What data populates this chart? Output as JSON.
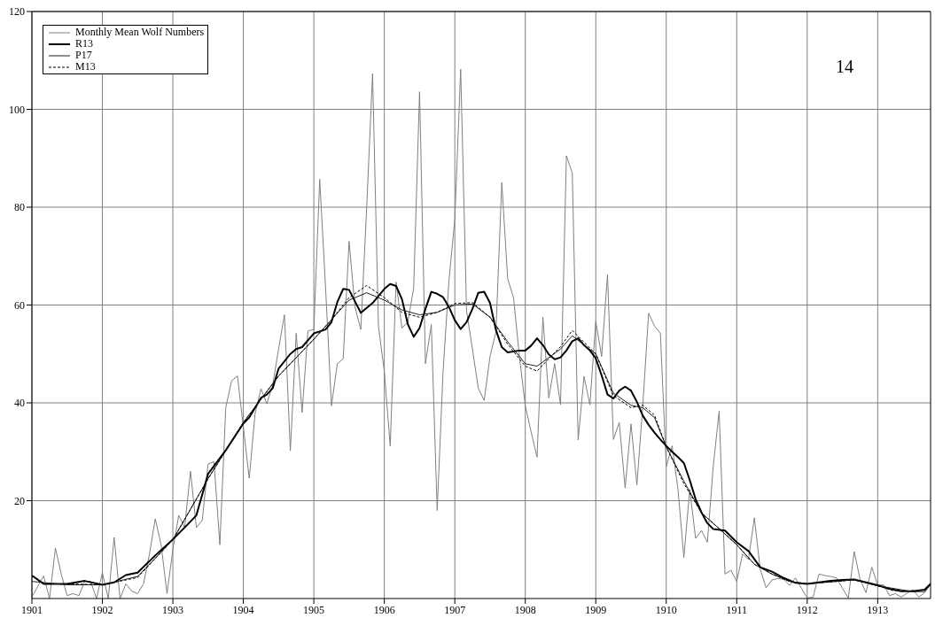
{
  "chart_data": {
    "type": "line",
    "annotations": [
      "14"
    ],
    "xlim": [
      "1901-01",
      "1913-10"
    ],
    "xticks": [
      "1901",
      "1902",
      "1903",
      "1904",
      "1905",
      "1906",
      "1907",
      "1908",
      "1909",
      "1910",
      "1911",
      "1912",
      "1913"
    ],
    "ylim": [
      0,
      120
    ],
    "yticks": [
      20,
      40,
      60,
      80,
      100,
      120
    ],
    "grid": true,
    "legend": "top left",
    "series": [
      {
        "name": "Monthly Mean Wolf Numbers",
        "color": "#808080",
        "x": [
          "1901-01",
          "1901-02",
          "1901-03",
          "1901-04",
          "1901-05",
          "1901-06",
          "1901-07",
          "1901-08",
          "1901-09",
          "1901-10",
          "1901-11",
          "1901-12",
          "1902-01",
          "1902-02",
          "1902-03",
          "1902-04",
          "1902-05",
          "1902-06",
          "1902-07",
          "1902-08",
          "1902-09",
          "1902-10",
          "1902-11",
          "1902-12",
          "1903-01",
          "1903-02",
          "1903-03",
          "1903-04",
          "1903-05",
          "1903-06",
          "1903-07",
          "1903-08",
          "1903-09",
          "1903-10",
          "1903-11",
          "1903-12",
          "1904-01",
          "1904-02",
          "1904-03",
          "1904-04",
          "1904-05",
          "1904-06",
          "1904-07",
          "1904-08",
          "1904-09",
          "1904-10",
          "1904-11",
          "1904-12",
          "1905-01",
          "1905-02",
          "1905-03",
          "1905-04",
          "1905-05",
          "1905-06",
          "1905-07",
          "1905-08",
          "1905-09",
          "1905-10",
          "1905-11",
          "1905-12",
          "1906-01",
          "1906-02",
          "1906-03",
          "1906-04",
          "1906-05",
          "1906-06",
          "1906-07",
          "1906-08",
          "1906-09",
          "1906-10",
          "1906-11",
          "1906-12",
          "1907-01",
          "1907-02",
          "1907-03",
          "1907-04",
          "1907-05",
          "1907-06",
          "1907-07",
          "1907-08",
          "1907-09",
          "1907-10",
          "1907-11",
          "1907-12",
          "1908-01",
          "1908-02",
          "1908-03",
          "1908-04",
          "1908-05",
          "1908-06",
          "1908-07",
          "1908-08",
          "1908-09",
          "1908-10",
          "1908-11",
          "1908-12",
          "1909-01",
          "1909-02",
          "1909-03",
          "1909-04",
          "1909-05",
          "1909-06",
          "1909-07",
          "1909-08",
          "1909-09",
          "1909-10",
          "1909-11",
          "1909-12",
          "1910-01",
          "1910-02",
          "1910-03",
          "1910-04",
          "1910-05",
          "1910-06",
          "1910-07",
          "1910-08",
          "1910-09",
          "1910-10",
          "1910-11",
          "1910-12",
          "1911-01",
          "1911-02",
          "1911-03",
          "1911-04",
          "1911-05",
          "1911-06",
          "1911-07",
          "1911-08",
          "1911-09",
          "1911-10",
          "1911-11",
          "1911-12",
          "1912-01",
          "1912-02",
          "1912-03",
          "1912-04",
          "1912-05",
          "1912-06",
          "1912-07",
          "1912-08",
          "1912-09",
          "1912-10",
          "1912-11",
          "1912-12",
          "1913-01",
          "1913-02",
          "1913-03",
          "1913-04",
          "1913-05",
          "1913-06",
          "1913-07",
          "1913-08",
          "1913-09",
          "1913-10"
        ],
        "values": [
          0.3,
          2.5,
          4.6,
          0,
          10.3,
          5,
          0.6,
          1,
          0.6,
          3.5,
          3.5,
          0,
          5.3,
          0,
          12.5,
          0,
          3,
          1.5,
          1,
          3,
          9,
          16.3,
          11,
          1,
          10,
          17,
          14.5,
          26,
          14.5,
          16,
          27.5,
          28,
          11,
          39,
          44.5,
          45.5,
          35,
          24.6,
          37.8,
          42.9,
          39.8,
          43.7,
          51,
          58,
          30.2,
          54.2,
          38,
          54.7,
          55,
          85.7,
          63.5,
          39.4,
          48,
          49,
          73,
          59.6,
          55,
          80,
          107.3,
          55.7,
          46.4,
          31.2,
          64.7,
          55.3,
          56.5,
          63.5,
          103.6,
          48,
          56,
          18,
          46.4,
          65,
          77.5,
          108.2,
          58.8,
          51,
          43,
          40.5,
          49.5,
          54.5,
          85,
          65.4,
          61.5,
          49.5,
          39.4,
          34,
          28.9,
          57.5,
          41,
          48,
          39.6,
          90.5,
          87,
          32.4,
          45.4,
          39.6,
          56.7,
          49.5,
          66.2,
          32.5,
          36,
          22.6,
          35.7,
          23.2,
          39.4,
          58.3,
          55.7,
          54.2,
          27,
          31.2,
          22.3,
          8.4,
          22.3,
          12.3,
          13.9,
          11.5,
          27,
          38.3,
          5,
          5.8,
          3.5,
          9.1,
          8,
          16.5,
          6,
          2.2,
          3.8,
          4.1,
          3.9,
          2.7,
          4.2,
          2.1,
          0.1,
          0.3,
          5,
          4.7,
          4.5,
          4.2,
          2.1,
          0.1,
          9.6,
          3.9,
          1.2,
          6.4,
          2.7,
          2.8,
          0.6,
          1,
          0.3,
          1.1,
          1.8,
          0.3,
          1.2,
          3.2
        ]
      },
      {
        "name": "R13",
        "color": "#000000",
        "x": [
          "1901-01",
          "1901-03",
          "1901-07",
          "1901-10",
          "1902-01",
          "1902-03",
          "1902-05",
          "1902-07",
          "1902-10",
          "1903-01",
          "1903-03",
          "1903-05",
          "1903-07",
          "1903-10",
          "1904-01",
          "1904-02",
          "1904-04",
          "1904-05",
          "1904-06",
          "1904-07",
          "1904-09",
          "1904-10",
          "1904-11",
          "1905-01",
          "1905-03",
          "1905-04",
          "1905-05",
          "1905-06",
          "1905-07",
          "1905-09",
          "1905-11",
          "1906-01",
          "1906-02",
          "1906-03",
          "1906-04",
          "1906-05",
          "1906-06",
          "1906-07",
          "1906-08",
          "1906-09",
          "1906-10",
          "1906-11",
          "1906-12",
          "1907-01",
          "1907-02",
          "1907-03",
          "1907-04",
          "1907-05",
          "1907-06",
          "1907-07",
          "1907-08",
          "1907-09",
          "1907-10",
          "1907-12",
          "1908-01",
          "1908-02",
          "1908-03",
          "1908-04",
          "1908-05",
          "1908-06",
          "1908-07",
          "1908-08",
          "1908-09",
          "1908-10",
          "1908-11",
          "1908-12",
          "1909-01",
          "1909-02",
          "1909-03",
          "1909-04",
          "1909-05",
          "1909-06",
          "1909-07",
          "1909-08",
          "1909-09",
          "1909-10",
          "1909-11",
          "1909-12",
          "1910-01",
          "1910-02",
          "1910-03",
          "1910-04",
          "1910-05",
          "1910-06",
          "1910-07",
          "1910-08",
          "1910-09",
          "1910-11",
          "1911-01",
          "1911-03",
          "1911-05",
          "1911-07",
          "1911-09",
          "1911-11",
          "1912-01",
          "1912-03",
          "1912-05",
          "1912-07",
          "1912-09",
          "1912-11",
          "1913-01",
          "1913-03",
          "1913-05",
          "1913-07",
          "1913-09",
          "1913-10"
        ],
        "values": [
          4.7,
          3.0,
          3.0,
          3.6,
          2.8,
          3.3,
          4.8,
          5.3,
          8.8,
          12.1,
          14.5,
          17,
          25.5,
          30.3,
          35.8,
          37,
          41,
          41.7,
          43,
          47,
          50,
          51,
          51.4,
          54.2,
          55,
          56.5,
          60.6,
          63.3,
          63.1,
          58.4,
          60.4,
          63.3,
          64.3,
          63.9,
          61.2,
          56.1,
          53.5,
          55.3,
          59.2,
          62.7,
          62.3,
          61.6,
          59.6,
          56.9,
          55.1,
          56.5,
          59.2,
          62.5,
          62.7,
          60.4,
          54.9,
          51.4,
          50.3,
          50.7,
          50.7,
          51.7,
          53.2,
          51.8,
          49.9,
          48.9,
          49.3,
          50.7,
          52.6,
          53.2,
          51.8,
          50.7,
          49.1,
          45.6,
          41.7,
          40.9,
          42.5,
          43.3,
          42.5,
          40.2,
          37.4,
          35.5,
          33.9,
          32.5,
          31.2,
          30,
          28.9,
          27.7,
          24.2,
          20.3,
          17.6,
          15.4,
          14.2,
          13.9,
          11.5,
          9.7,
          6.4,
          5.5,
          4.2,
          3.2,
          3,
          3.3,
          3.6,
          3.8,
          3.9,
          3.3,
          2.7,
          2,
          1.5,
          1.5,
          1.8,
          3
        ]
      },
      {
        "name": "P17",
        "color": "#222222",
        "x": [
          "1901-01",
          "1901-07",
          "1902-01",
          "1902-07",
          "1903-01",
          "1903-07",
          "1904-01",
          "1904-07",
          "1905-01",
          "1905-04",
          "1905-07",
          "1905-10",
          "1906-01",
          "1906-04",
          "1906-07",
          "1906-10",
          "1907-01",
          "1907-04",
          "1907-07",
          "1907-10",
          "1908-01",
          "1908-03",
          "1908-07",
          "1908-09",
          "1909-01",
          "1909-04",
          "1909-07",
          "1909-09",
          "1909-11",
          "1910-01",
          "1910-04",
          "1910-07",
          "1910-10",
          "1911-01",
          "1911-04",
          "1911-07",
          "1911-10",
          "1912-01",
          "1912-07",
          "1912-09",
          "1913-01",
          "1913-07",
          "1913-09",
          "1913-10"
        ],
        "values": [
          3.5,
          2.8,
          2.8,
          4.5,
          12,
          24.5,
          36,
          45.5,
          53,
          57,
          61,
          62.5,
          61,
          59,
          58,
          58.5,
          60,
          60.2,
          57.5,
          52.5,
          48,
          47.5,
          51,
          53.7,
          50,
          42,
          39.5,
          39,
          37,
          31,
          24,
          17.5,
          14.3,
          11,
          7,
          5,
          3.5,
          3,
          3.6,
          3.9,
          2.6,
          1.4,
          1.4,
          2.8
        ]
      },
      {
        "name": "M13",
        "color": "#000000",
        "line_style": "dashed",
        "x": [
          "1901-07",
          "1902-01",
          "1902-07",
          "1903-01",
          "1903-07",
          "1904-01",
          "1904-07",
          "1905-01",
          "1905-04",
          "1905-07",
          "1905-10",
          "1906-01",
          "1906-04",
          "1906-07",
          "1906-10",
          "1907-01",
          "1907-04",
          "1907-07",
          "1907-10",
          "1908-01",
          "1908-03",
          "1908-07",
          "1908-09",
          "1909-01",
          "1909-04",
          "1909-07",
          "1909-09",
          "1909-11",
          "1910-01",
          "1910-04",
          "1910-07",
          "1910-10",
          "1911-01",
          "1911-04",
          "1911-07",
          "1911-10",
          "1912-01",
          "1912-07",
          "1912-09",
          "1913-01",
          "1913-04"
        ],
        "values": [
          3,
          2.8,
          4.3,
          12,
          24.5,
          36,
          45.5,
          53,
          57,
          61.5,
          64,
          61.5,
          58.5,
          57.5,
          58.5,
          60.3,
          60.5,
          57.5,
          52,
          47.5,
          46.5,
          51.5,
          54.8,
          50,
          41.5,
          39,
          39.5,
          37.5,
          31,
          23.5,
          17.5,
          14.3,
          11,
          7,
          5,
          3.5,
          3,
          3.6,
          3.8,
          2.6,
          1.5
        ]
      }
    ]
  }
}
